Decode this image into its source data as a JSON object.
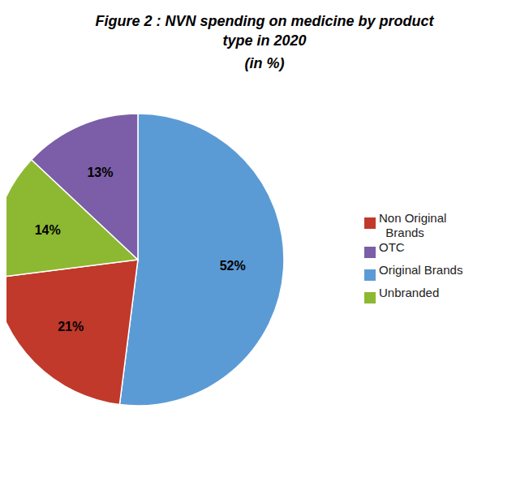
{
  "chart_data": {
    "type": "pie",
    "title": "Figure 2 : NVN spending on medicine by product type in 2020",
    "subtitle": "(in %)",
    "categories": [
      "Original Brands",
      "Non Original\n  Brands",
      "Unbranded",
      "OTC"
    ],
    "values": [
      52,
      21,
      14,
      13
    ],
    "value_labels": [
      "52%",
      "21%",
      "14%",
      "13%"
    ],
    "colors": [
      "#5b9bd5",
      "#c0392b",
      "#8db832",
      "#7b5ea7"
    ],
    "data_labels": true,
    "legend": "right"
  }
}
